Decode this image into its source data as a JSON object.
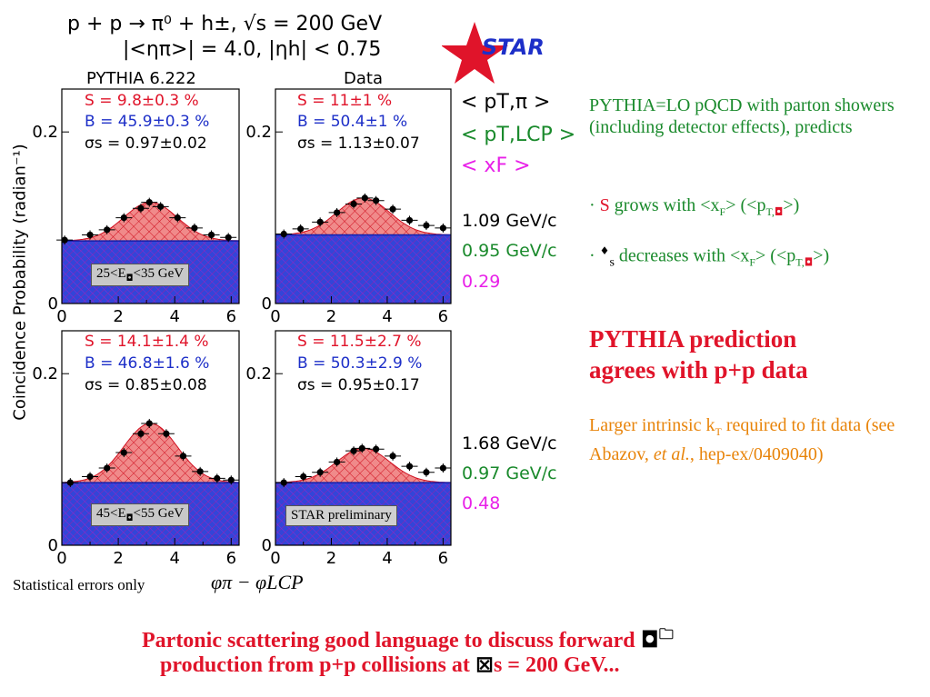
{
  "header": {
    "line1": "p + p  →  π⁰ + h±,  √s = 200 GeV",
    "line2": "|<ηπ>| = 4.0,  |ηh| < 0.75",
    "star_logo": "STAR",
    "col_left": "PYTHIA 6.222",
    "col_right": "Data"
  },
  "yaxis_label": "Coincidence Probability (radian⁻¹)",
  "xaxis_label": "φπ − φLCP",
  "stat_note": "Statistical errors only",
  "legend": {
    "pt_pi": "< pT,π >",
    "pt_lcp": "< pT,LCP >",
    "xf": "< xF >"
  },
  "row_values": [
    {
      "pt_pi": "1.09 GeV/c",
      "pt_lcp": "0.95 GeV/c",
      "xf": "0.29"
    },
    {
      "pt_pi": "1.68 GeV/c",
      "pt_lcp": "0.97 GeV/c",
      "xf": "0.48"
    }
  ],
  "row_boxes": [
    "25<E",
    "<35 GeV",
    "45<E",
    "<55 GeV"
  ],
  "star_preliminary": "STAR preliminary",
  "right_text": {
    "p1": "PYTHIA=LO pQCD with parton showers (including detector effects), predicts",
    "b1_bullet": "·",
    "b1_s": "S",
    "b1_text": "grows with <x",
    "b1_sub": "F",
    "b1_text2": "> (<p",
    "b1_sub2": "T,",
    "b1_end": ">)",
    "b2_bullet": "·",
    "b2_sym": "♦",
    "b2_sub": "s",
    "b2_text": "decreases with <x",
    "b2_sub1": "F",
    "b2_text2": "> (<p",
    "b2_sub2": "T,",
    "b2_end": ">)",
    "headline1": "PYTHIA prediction",
    "headline2": "agrees with p+p data",
    "orange1": "Larger intrinsic k",
    "orange_sub": "T",
    "orange2": "required to fit data (see Abazov, ",
    "orange_it": "et al.",
    "orange3": ", hep-ex/0409040)"
  },
  "footer": {
    "bullet": "",
    "line1": "Partonic scattering good language to discuss forward ",
    "line2": "production from p+p collisions at ",
    "line2_end": "s = 200 GeV..."
  },
  "colors": {
    "signal": "#e0142a",
    "background": "#1d2fc8",
    "green": "#1a8a2c",
    "magenta": "#e820e8",
    "orange": "#e8840a"
  },
  "chart_data": [
    {
      "type": "scatter",
      "panel": "PYTHIA 6.222, 25<E<35 GeV",
      "ylim": [
        0,
        0.25
      ],
      "xlim": [
        0,
        6.28
      ],
      "xticks": [
        0,
        2,
        4,
        6
      ],
      "yticks": [
        0,
        0.2
      ],
      "S": "S = 9.8±0.3 %",
      "B": "B = 45.9±0.3 %",
      "sigma": "σs = 0.97±0.02",
      "baseline": 0.073,
      "peak": 0.118,
      "x": [
        0.1,
        1.0,
        1.6,
        2.2,
        2.8,
        3.1,
        3.5,
        4.1,
        4.7,
        5.3,
        5.9
      ],
      "y": [
        0.074,
        0.08,
        0.086,
        0.1,
        0.111,
        0.118,
        0.113,
        0.1,
        0.088,
        0.08,
        0.077
      ]
    },
    {
      "type": "scatter",
      "panel": "Data, 25<E<35 GeV",
      "ylim": [
        0,
        0.25
      ],
      "xlim": [
        0,
        6.28
      ],
      "xticks": [
        0,
        2,
        4,
        6
      ],
      "yticks": [
        0,
        0.2
      ],
      "S": "S = 11±1 %",
      "B": "B = 50.4±1 %",
      "sigma": "σs = 1.13±0.07",
      "baseline": 0.08,
      "peak": 0.123,
      "x": [
        0.3,
        0.9,
        1.6,
        2.2,
        2.8,
        3.2,
        3.6,
        4.2,
        4.8,
        5.4,
        6.0
      ],
      "y": [
        0.081,
        0.087,
        0.095,
        0.106,
        0.116,
        0.123,
        0.12,
        0.11,
        0.097,
        0.091,
        0.088
      ]
    },
    {
      "type": "scatter",
      "panel": "PYTHIA 6.222, 45<E<55 GeV",
      "ylim": [
        0,
        0.25
      ],
      "xlim": [
        0,
        6.28
      ],
      "xticks": [
        0,
        2,
        4,
        6
      ],
      "yticks": [
        0,
        0.2
      ],
      "S": "S = 14.1±1.4 %",
      "B": "B = 46.8±1.6 %",
      "sigma": "σs = 0.85±0.08",
      "baseline": 0.073,
      "peak": 0.142,
      "x": [
        0.3,
        1.0,
        1.6,
        2.2,
        2.8,
        3.1,
        3.7,
        4.3,
        4.9,
        5.5,
        6.0
      ],
      "y": [
        0.073,
        0.08,
        0.09,
        0.108,
        0.13,
        0.142,
        0.13,
        0.104,
        0.086,
        0.078,
        0.076
      ]
    },
    {
      "type": "scatter",
      "panel": "Data, 45<E<55 GeV (STAR preliminary)",
      "ylim": [
        0,
        0.25
      ],
      "xlim": [
        0,
        6.28
      ],
      "xticks": [
        0,
        2,
        4,
        6
      ],
      "yticks": [
        0,
        0.2
      ],
      "S": "S = 11.5±2.7 %",
      "B": "B = 50.3±2.9 %",
      "sigma": "σs = 0.95±0.17",
      "baseline": 0.073,
      "peak": 0.113,
      "x": [
        0.3,
        1.0,
        1.6,
        2.2,
        2.8,
        3.1,
        3.6,
        4.2,
        4.8,
        5.4,
        6.0
      ],
      "y": [
        0.073,
        0.08,
        0.085,
        0.097,
        0.11,
        0.113,
        0.112,
        0.104,
        0.092,
        0.085,
        0.09
      ]
    }
  ]
}
